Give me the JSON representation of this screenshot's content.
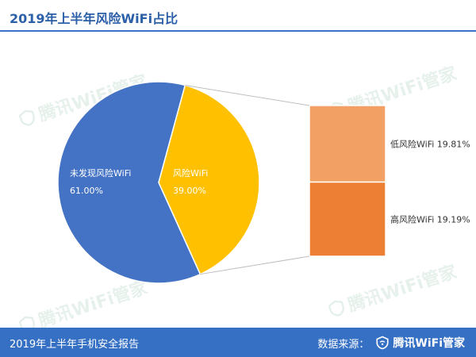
{
  "header": {
    "title": "2019年上半年风险WiFi占比"
  },
  "watermark": {
    "text": "腾讯WiFi管家",
    "icon": "wifi-shield-icon"
  },
  "footer": {
    "report_name": "2019年上半年手机安全报告",
    "source_label": "数据来源：",
    "brand": "腾讯WiFi管家",
    "brand_icon": "wifi-shield-icon"
  },
  "colors": {
    "title": "#2b5fa8",
    "footer_bg": "#3670c4",
    "pie_blue": "#4472c4",
    "pie_gold": "#ffc000",
    "bar_light_orange": "#f4a261",
    "bar_dark_orange": "#ed7d31"
  },
  "chart_data": {
    "type": "pie",
    "title": "2019年上半年风险WiFi占比",
    "slices": [
      {
        "label": "未发现风险WiFi",
        "value": 61.0,
        "value_label": "61.00%",
        "color": "#4472c4"
      },
      {
        "label": "风险WiFi",
        "value": 39.0,
        "value_label": "39.00%",
        "color": "#ffc000"
      }
    ],
    "breakdown": {
      "of": "风险WiFi",
      "type": "stacked-bar",
      "items": [
        {
          "label": "低风险WiFi",
          "value": 19.81,
          "value_label": "19.81%",
          "color": "#f2a064"
        },
        {
          "label": "高风险WiFi",
          "value": 19.19,
          "value_label": "19.19%",
          "color": "#ec7f33"
        }
      ]
    }
  }
}
